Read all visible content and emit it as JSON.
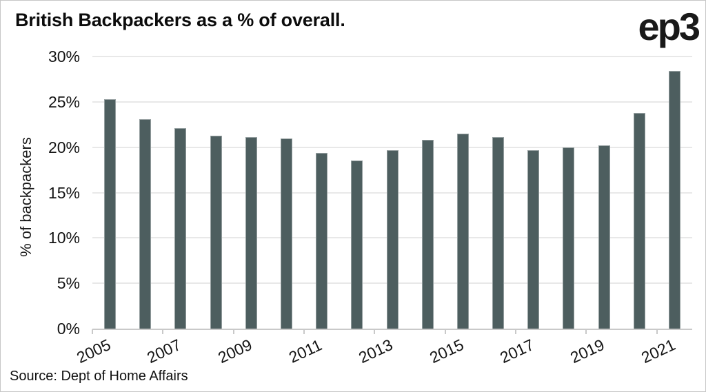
{
  "header": {
    "title": "British Backpackers as a % of overall.",
    "logo": "ep3"
  },
  "chart_data": {
    "type": "bar",
    "title": "British Backpackers as a % of overall.",
    "categories": [
      "2005",
      "2006",
      "2007",
      "2008",
      "2009",
      "2010",
      "2011",
      "2012",
      "2013",
      "2014",
      "2015",
      "2016",
      "2017",
      "2018",
      "2019",
      "2020",
      "2021"
    ],
    "values": [
      25.3,
      23.1,
      22.1,
      21.3,
      21.1,
      21.0,
      19.4,
      18.5,
      19.7,
      20.8,
      21.5,
      21.1,
      19.7,
      20.0,
      20.2,
      23.8,
      28.4
    ],
    "xlabel": "",
    "ylabel": "% of backpackers",
    "ylim": [
      0,
      30
    ],
    "ytick_labels": [
      "0%",
      "5%",
      "10%",
      "15%",
      "20%",
      "25%",
      "30%"
    ],
    "xtick_labels": [
      "2005",
      "2007",
      "2009",
      "2011",
      "2013",
      "2015",
      "2017",
      "2019",
      "2021"
    ],
    "grid": "horizontal",
    "legend": "none",
    "bar_color": "#4d5e5f"
  },
  "footer": {
    "source": "Source: Dept of Home Affairs"
  }
}
